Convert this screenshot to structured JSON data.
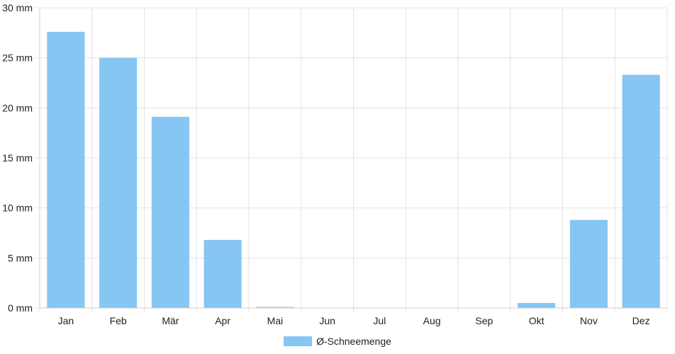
{
  "chart_data": {
    "type": "bar",
    "categories": [
      "Jan",
      "Feb",
      "Mär",
      "Apr",
      "Mai",
      "Jun",
      "Jul",
      "Aug",
      "Sep",
      "Okt",
      "Nov",
      "Dez"
    ],
    "series": [
      {
        "name": "Ø-Schneemenge",
        "values": [
          27.6,
          25.0,
          19.1,
          6.8,
          0.1,
          0,
          0,
          0,
          0,
          0.5,
          8.8,
          23.3
        ],
        "color": "#87c5f2"
      }
    ],
    "ylim": [
      0,
      30
    ],
    "y_ticks": [
      0,
      5,
      10,
      15,
      20,
      25,
      30
    ],
    "y_tick_labels": [
      "0 mm",
      "5 mm",
      "10 mm",
      "15 mm",
      "20 mm",
      "25 mm",
      "30 mm"
    ],
    "grid": true,
    "legend_position": "bottom"
  }
}
